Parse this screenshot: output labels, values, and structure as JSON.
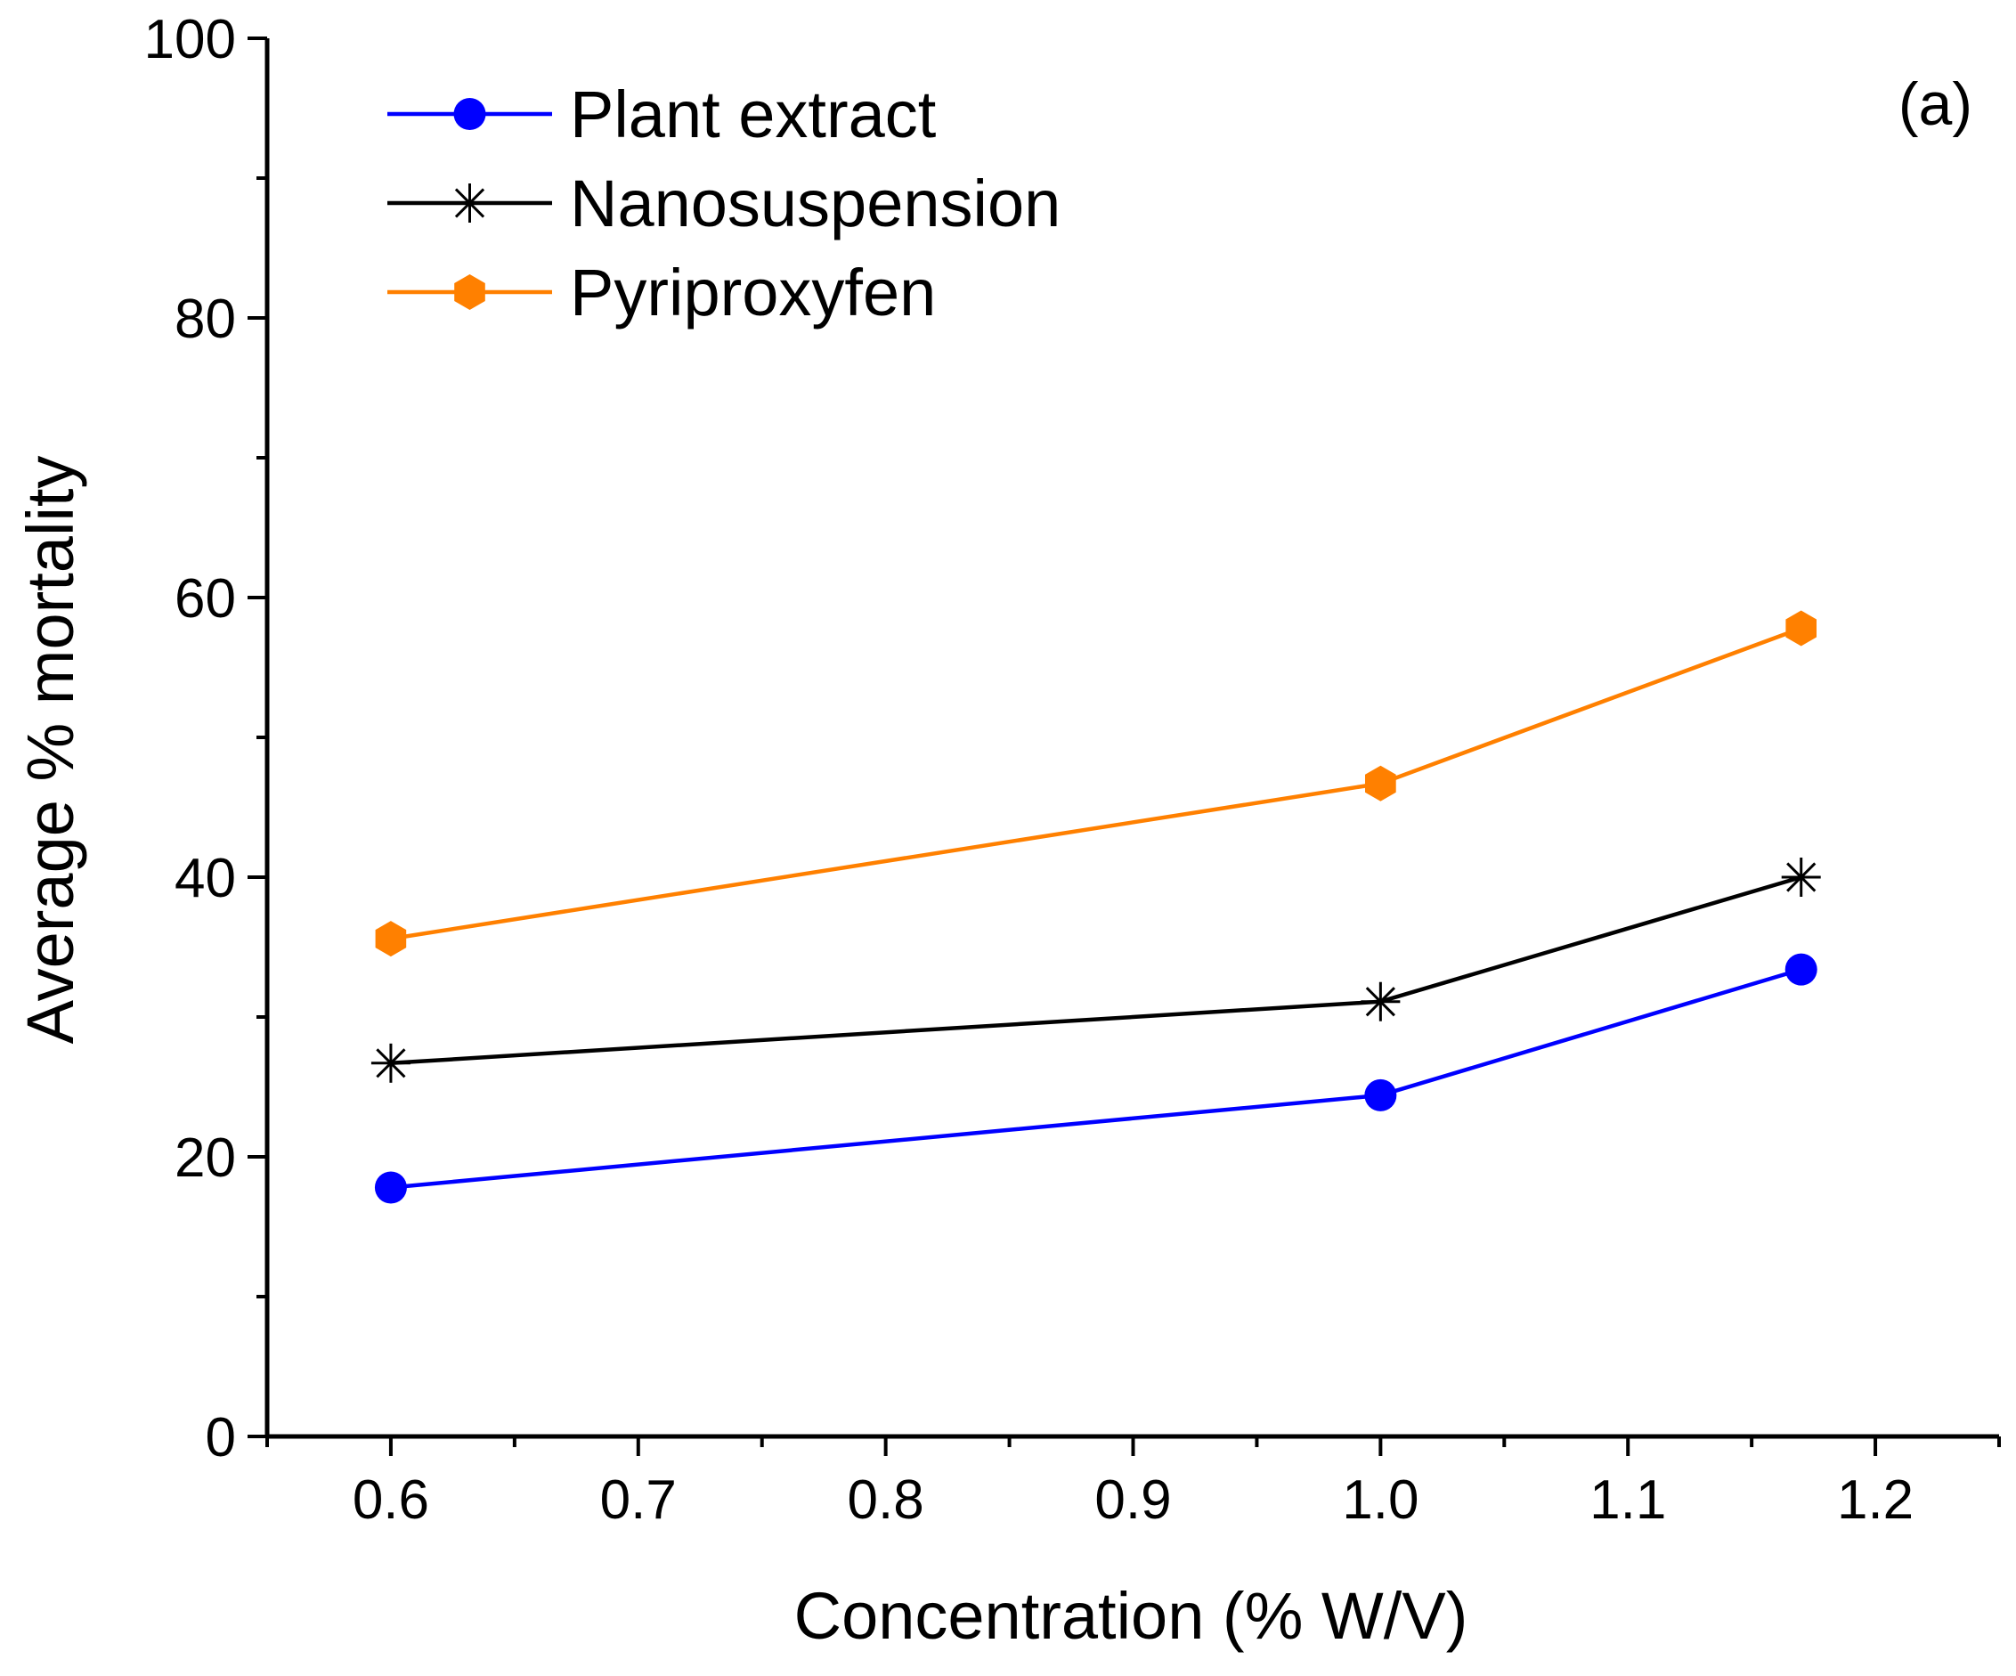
{
  "chart_data": {
    "type": "line",
    "title": "",
    "panel_label": "(a)",
    "xlabel": "Concentration (% W/V)",
    "ylabel": "Average % mortality",
    "xlim": [
      0.55,
      1.25
    ],
    "ylim": [
      0,
      100
    ],
    "x_ticks": [
      0.6,
      0.7,
      0.8,
      0.9,
      1.0,
      1.1,
      1.2
    ],
    "x_tick_labels": [
      "0.6",
      "0.7",
      "0.8",
      "0.9",
      "1.0",
      "1.1",
      "1.2"
    ],
    "y_ticks": [
      0,
      20,
      40,
      60,
      80,
      100
    ],
    "y_tick_labels": [
      "0",
      "20",
      "40",
      "60",
      "80",
      "100"
    ],
    "grid": false,
    "legend_position": "top-left",
    "series": [
      {
        "name": "Plant extract",
        "color": "#0000ff",
        "marker": "circle",
        "x": [
          0.6,
          1.0,
          1.17
        ],
        "values": [
          17.8,
          24.4,
          33.4
        ]
      },
      {
        "name": "Nanosuspension",
        "color": "#000000",
        "marker": "asterisk",
        "x": [
          0.6,
          1.0,
          1.17
        ],
        "values": [
          26.7,
          31.1,
          40.0
        ]
      },
      {
        "name": "Pyriproxyfen",
        "color": "#ff8000",
        "marker": "hexagon",
        "x": [
          0.6,
          1.0,
          1.17
        ],
        "values": [
          35.6,
          46.7,
          57.8
        ]
      }
    ]
  }
}
